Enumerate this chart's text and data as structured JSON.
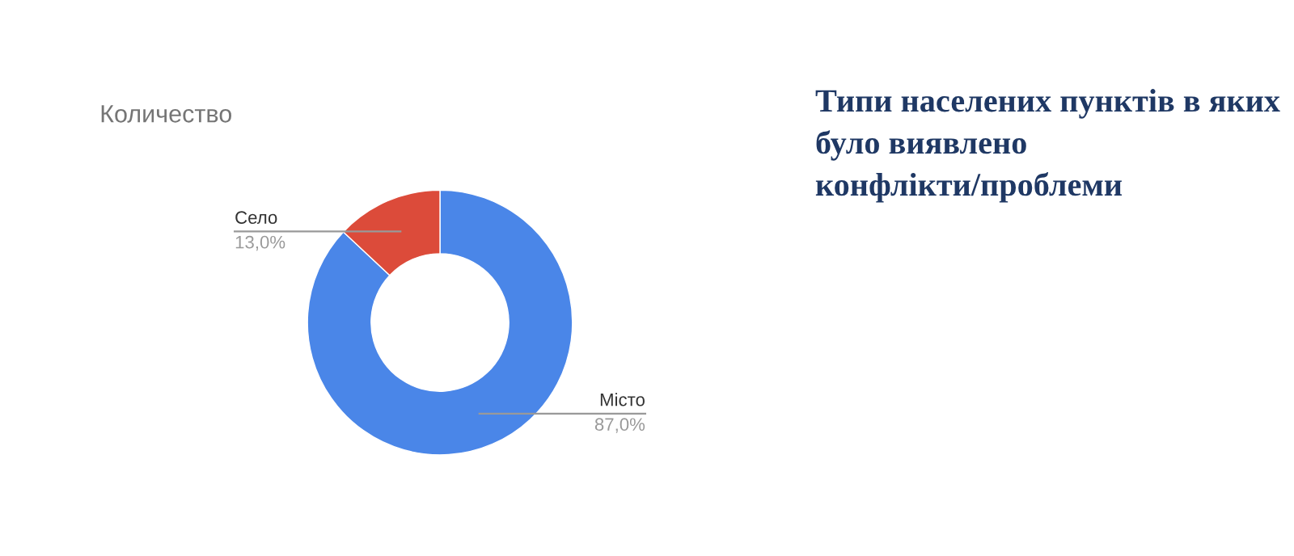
{
  "chart_data": {
    "type": "donut",
    "title": "Количество",
    "subtitle": "Типи населених пунктів в яких було виявлено конфлікти/проблеми",
    "categories": [
      "Місто",
      "Село"
    ],
    "values": [
      87.0,
      13.0
    ],
    "colors": [
      "#4a86e8",
      "#dc4b3a"
    ],
    "value_labels": [
      "87,0%",
      "13,0%"
    ],
    "legend": false
  }
}
